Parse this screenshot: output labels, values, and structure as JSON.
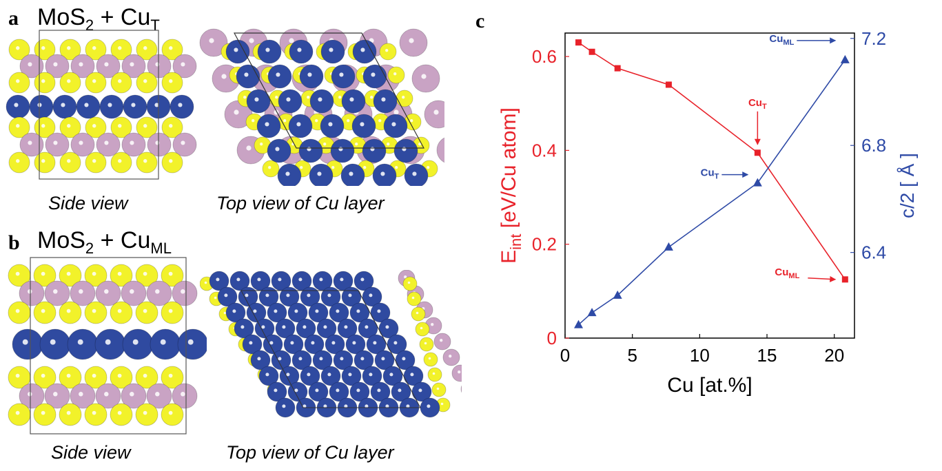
{
  "panel_a": {
    "letter": "a",
    "title_main": "MoS",
    "title_sub2": "2",
    "title_plus": " + Cu",
    "title_subscript": "T",
    "side_caption": "Side view",
    "top_caption": "Top view of Cu layer"
  },
  "panel_b": {
    "letter": "b",
    "title_main": "MoS",
    "title_sub2": "2",
    "title_plus": " + Cu",
    "title_subscript": "ML",
    "side_caption": "Side view",
    "top_caption": "Top view of Cu layer"
  },
  "colors": {
    "sulfur": "#f2f22a",
    "molybdenum": "#c9a3c4",
    "copper": "#2f4aa0",
    "red_series": "#e8222a",
    "blue_series": "#2e4aa6"
  },
  "chart_data": {
    "panel_letter": "c",
    "type": "line",
    "xlabel": "Cu [at.%]",
    "xlim": [
      0,
      21.5
    ],
    "xticks": [
      0,
      5,
      10,
      15,
      20
    ],
    "ylabel_left_main": "E",
    "ylabel_left_sub": "int",
    "ylabel_left_rest": " [eV/Cu atom]",
    "ylim_left": [
      0,
      0.65
    ],
    "yticks_left": [
      "0",
      "0.2",
      "0.4",
      "0.6"
    ],
    "yticks_left_values": [
      0,
      0.2,
      0.4,
      0.6
    ],
    "ylabel_right": "c/2 [ Å ]",
    "ylim_right": [
      6.08,
      7.22
    ],
    "yticks_right": [
      "6.4",
      "6.8",
      "7.2"
    ],
    "yticks_right_values": [
      6.4,
      6.8,
      7.2
    ],
    "series": [
      {
        "axis": "left",
        "marker": "square",
        "x": [
          1.0,
          2.0,
          3.9,
          7.7,
          14.3,
          20.8
        ],
        "y": [
          0.63,
          0.61,
          0.575,
          0.54,
          0.395,
          0.125
        ]
      },
      {
        "axis": "right",
        "marker": "triangle",
        "x": [
          1.0,
          2.0,
          3.9,
          7.7,
          14.3,
          20.8
        ],
        "y": [
          6.13,
          6.175,
          6.24,
          6.42,
          6.66,
          7.12
        ]
      }
    ],
    "annotations": [
      {
        "base": "Cu",
        "sub": "T",
        "series": 0,
        "point": 4
      },
      {
        "base": "Cu",
        "sub": "ML",
        "series": 0,
        "point": 5
      },
      {
        "base": "Cu",
        "sub": "T",
        "series": 1,
        "point": 4
      },
      {
        "base": "Cu",
        "sub": "ML",
        "series": 1,
        "point": 5
      }
    ]
  }
}
